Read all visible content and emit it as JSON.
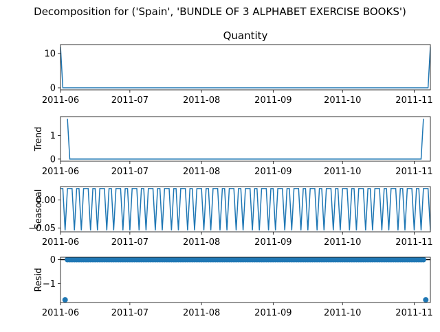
{
  "suptitle": "Decomposition for ('Spain', 'BUNDLE OF 3 ALPHABET EXERCISE BOOKS')",
  "line_color": "#1f77b4",
  "x_ticks": [
    "2011-06",
    "2011-07",
    "2011-08",
    "2011-09",
    "2011-10",
    "2011-11"
  ],
  "chart_data": [
    {
      "type": "line",
      "title": "Quantity",
      "ylabel": "",
      "xlim": [
        "2011-06-01",
        "2011-11-08"
      ],
      "ylim": [
        -0.6,
        12.6
      ],
      "yticks": [
        {
          "v": 0,
          "label": "0"
        },
        {
          "v": 10,
          "label": "10"
        }
      ],
      "series": [
        {
          "x": [
            "2011-06-01",
            "2011-06-02",
            "2011-11-07",
            "2011-11-08"
          ],
          "values": [
            12,
            0,
            0,
            12
          ]
        }
      ]
    },
    {
      "type": "line",
      "title": "",
      "ylabel": "Trend",
      "xlim": [
        "2011-06-01",
        "2011-11-08"
      ],
      "ylim": [
        -0.09,
        1.8
      ],
      "yticks": [
        {
          "v": 0,
          "label": "0"
        },
        {
          "v": 1,
          "label": "1"
        }
      ],
      "series": [
        {
          "x": [
            "2011-06-04",
            "2011-06-05",
            "2011-11-04",
            "2011-11-05"
          ],
          "values": [
            1.71,
            0,
            0,
            1.71
          ]
        }
      ]
    },
    {
      "type": "line",
      "title": "",
      "ylabel": "Seasonal",
      "xlim": [
        "2011-06-01",
        "2011-11-08"
      ],
      "ylim": [
        -0.057,
        0.024
      ],
      "yticks": [
        {
          "v": 0.0,
          "label": "0.00"
        },
        {
          "v": -0.05,
          "label": "−0.05"
        }
      ],
      "seasonal_pattern": [
        0.0204,
        0.0204,
        -0.0543,
        0.0204,
        0.0204,
        0.0204,
        -0.0543
      ],
      "x_start": "2011-06-01",
      "x_end": "2011-11-08"
    },
    {
      "type": "scatter",
      "title": "",
      "ylabel": "Resid",
      "xlim": [
        "2011-06-01",
        "2011-11-08"
      ],
      "ylim": [
        -1.78,
        0.1
      ],
      "yticks": [
        {
          "v": 0,
          "label": "0"
        },
        {
          "v": -1,
          "label": "−1"
        }
      ],
      "points": {
        "outliers": [
          {
            "x": "2011-06-03",
            "y": -1.67
          },
          {
            "x": "2011-11-06",
            "y": -1.67
          }
        ],
        "zero_start": "2011-06-04",
        "zero_end": "2011-11-05",
        "zero_value": 0
      }
    }
  ]
}
